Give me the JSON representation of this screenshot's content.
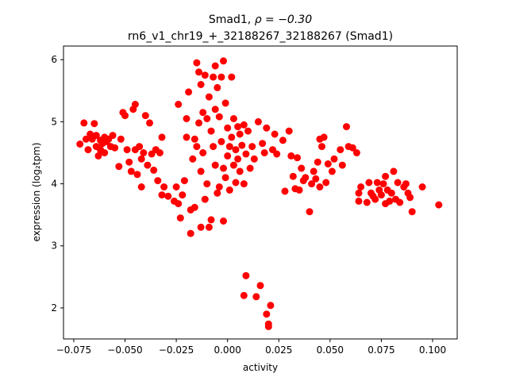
{
  "chart_data": {
    "type": "scatter",
    "title_line1_prefix": "Smad1, ",
    "title_rho": "ρ = −0.30",
    "title_line2": "rn6_v1_chr19_+_32188267_32188267 (Smad1)",
    "xlabel": "activity",
    "ylabel": "expression (log₂tpm)",
    "xlim": [
      -0.08,
      0.112
    ],
    "ylim": [
      1.5,
      6.22
    ],
    "xticks": [
      -0.075,
      -0.05,
      -0.025,
      0.0,
      0.025,
      0.05,
      0.075,
      0.1
    ],
    "xtick_labels": [
      "−0.075",
      "−0.050",
      "−0.025",
      "0.000",
      "0.025",
      "0.050",
      "0.075",
      "0.100"
    ],
    "yticks": [
      2,
      3,
      4,
      5,
      6
    ],
    "ytick_labels": [
      "2",
      "3",
      "4",
      "5",
      "6"
    ],
    "marker_color": "#ff0000",
    "series": [
      {
        "name": "samples",
        "points": [
          [
            -0.072,
            4.64
          ],
          [
            -0.07,
            4.98
          ],
          [
            -0.069,
            4.72
          ],
          [
            -0.068,
            4.55
          ],
          [
            -0.067,
            4.8
          ],
          [
            -0.066,
            4.72
          ],
          [
            -0.065,
            4.97
          ],
          [
            -0.064,
            4.78
          ],
          [
            -0.064,
            4.6
          ],
          [
            -0.063,
            4.45
          ],
          [
            -0.062,
            4.7
          ],
          [
            -0.062,
            4.55
          ],
          [
            -0.061,
            4.65
          ],
          [
            -0.06,
            4.75
          ],
          [
            -0.06,
            4.5
          ],
          [
            -0.059,
            4.68
          ],
          [
            -0.058,
            4.72
          ],
          [
            -0.057,
            4.6
          ],
          [
            -0.056,
            4.78
          ],
          [
            -0.055,
            4.58
          ],
          [
            -0.053,
            4.28
          ],
          [
            -0.052,
            4.72
          ],
          [
            -0.051,
            5.15
          ],
          [
            -0.05,
            5.1
          ],
          [
            -0.049,
            4.55
          ],
          [
            -0.048,
            4.35
          ],
          [
            -0.047,
            4.2
          ],
          [
            -0.046,
            5.2
          ],
          [
            -0.045,
            5.28
          ],
          [
            -0.045,
            4.55
          ],
          [
            -0.044,
            4.15
          ],
          [
            -0.043,
            4.6
          ],
          [
            -0.042,
            4.4
          ],
          [
            -0.042,
            3.95
          ],
          [
            -0.041,
            4.5
          ],
          [
            -0.04,
            5.1
          ],
          [
            -0.039,
            4.3
          ],
          [
            -0.038,
            4.98
          ],
          [
            -0.037,
            4.48
          ],
          [
            -0.036,
            4.22
          ],
          [
            -0.035,
            4.55
          ],
          [
            -0.034,
            4.05
          ],
          [
            -0.033,
            4.5
          ],
          [
            -0.032,
            4.75
          ],
          [
            -0.032,
            3.82
          ],
          [
            -0.031,
            3.95
          ],
          [
            -0.029,
            3.8
          ],
          [
            -0.026,
            3.72
          ],
          [
            -0.025,
            3.95
          ],
          [
            -0.024,
            5.28
          ],
          [
            -0.024,
            3.68
          ],
          [
            -0.023,
            3.45
          ],
          [
            -0.022,
            3.82
          ],
          [
            -0.021,
            4.05
          ],
          [
            -0.02,
            4.75
          ],
          [
            -0.02,
            5.05
          ],
          [
            -0.019,
            5.48
          ],
          [
            -0.018,
            3.58
          ],
          [
            -0.018,
            3.2
          ],
          [
            -0.017,
            4.4
          ],
          [
            -0.016,
            4.72
          ],
          [
            -0.016,
            3.62
          ],
          [
            -0.015,
            5.95
          ],
          [
            -0.015,
            4.6
          ],
          [
            -0.014,
            5.8
          ],
          [
            -0.014,
            4.98
          ],
          [
            -0.013,
            5.6
          ],
          [
            -0.013,
            4.2
          ],
          [
            -0.013,
            3.3
          ],
          [
            -0.012,
            5.15
          ],
          [
            -0.012,
            4.5
          ],
          [
            -0.011,
            5.75
          ],
          [
            -0.011,
            3.75
          ],
          [
            -0.01,
            5.05
          ],
          [
            -0.01,
            4.0
          ],
          [
            -0.009,
            5.4
          ],
          [
            -0.009,
            3.3
          ],
          [
            -0.008,
            4.85
          ],
          [
            -0.008,
            3.42
          ],
          [
            -0.007,
            5.72
          ],
          [
            -0.007,
            4.6
          ],
          [
            -0.006,
            5.9
          ],
          [
            -0.006,
            5.2
          ],
          [
            -0.006,
            4.3
          ],
          [
            -0.005,
            5.55
          ],
          [
            -0.005,
            3.85
          ],
          [
            -0.004,
            5.08
          ],
          [
            -0.004,
            3.95
          ],
          [
            -0.003,
            5.72
          ],
          [
            -0.003,
            4.68
          ],
          [
            -0.002,
            5.98
          ],
          [
            -0.002,
            4.25
          ],
          [
            -0.002,
            3.4
          ],
          [
            -0.001,
            5.3
          ],
          [
            -0.001,
            4.1
          ],
          [
            0.0,
            4.9
          ],
          [
            0.0,
            4.45
          ],
          [
            0.001,
            4.6
          ],
          [
            0.001,
            3.9
          ],
          [
            0.002,
            5.72
          ],
          [
            0.002,
            4.75
          ],
          [
            0.003,
            5.05
          ],
          [
            0.003,
            4.3
          ],
          [
            0.004,
            4.55
          ],
          [
            0.004,
            4.02
          ],
          [
            0.005,
            4.92
          ],
          [
            0.005,
            4.4
          ],
          [
            0.006,
            4.8
          ],
          [
            0.006,
            4.2
          ],
          [
            0.007,
            4.62
          ],
          [
            0.008,
            4.95
          ],
          [
            0.008,
            4.0
          ],
          [
            0.009,
            4.48
          ],
          [
            0.009,
            2.52
          ],
          [
            0.008,
            2.2
          ],
          [
            0.01,
            4.85
          ],
          [
            0.011,
            4.25
          ],
          [
            0.012,
            4.6
          ],
          [
            0.013,
            4.4
          ],
          [
            0.014,
            2.18
          ],
          [
            0.015,
            5.0
          ],
          [
            0.016,
            2.36
          ],
          [
            0.017,
            4.65
          ],
          [
            0.018,
            4.5
          ],
          [
            0.019,
            4.9
          ],
          [
            0.019,
            1.9
          ],
          [
            0.02,
            1.74
          ],
          [
            0.02,
            1.7
          ],
          [
            0.021,
            2.04
          ],
          [
            0.022,
            4.55
          ],
          [
            0.023,
            4.8
          ],
          [
            0.024,
            4.48
          ],
          [
            0.027,
            4.7
          ],
          [
            0.028,
            3.88
          ],
          [
            0.03,
            4.85
          ],
          [
            0.031,
            4.45
          ],
          [
            0.032,
            4.12
          ],
          [
            0.033,
            3.92
          ],
          [
            0.034,
            4.42
          ],
          [
            0.035,
            3.9
          ],
          [
            0.036,
            4.25
          ],
          [
            0.037,
            4.05
          ],
          [
            0.038,
            4.1
          ],
          [
            0.04,
            3.55
          ],
          [
            0.041,
            4.0
          ],
          [
            0.042,
            4.2
          ],
          [
            0.043,
            4.08
          ],
          [
            0.044,
            4.35
          ],
          [
            0.045,
            4.72
          ],
          [
            0.045,
            3.95
          ],
          [
            0.046,
            4.6
          ],
          [
            0.047,
            4.75
          ],
          [
            0.048,
            4.02
          ],
          [
            0.049,
            4.32
          ],
          [
            0.051,
            4.2
          ],
          [
            0.052,
            4.4
          ],
          [
            0.055,
            4.55
          ],
          [
            0.056,
            4.3
          ],
          [
            0.058,
            4.92
          ],
          [
            0.059,
            4.6
          ],
          [
            0.061,
            4.58
          ],
          [
            0.063,
            4.5
          ],
          [
            0.064,
            3.85
          ],
          [
            0.064,
            3.72
          ],
          [
            0.065,
            3.95
          ],
          [
            0.068,
            3.7
          ],
          [
            0.069,
            4.02
          ],
          [
            0.07,
            3.85
          ],
          [
            0.071,
            3.8
          ],
          [
            0.072,
            3.75
          ],
          [
            0.073,
            4.02
          ],
          [
            0.074,
            3.9
          ],
          [
            0.075,
            3.82
          ],
          [
            0.076,
            4.0
          ],
          [
            0.077,
            3.68
          ],
          [
            0.077,
            4.12
          ],
          [
            0.078,
            3.9
          ],
          [
            0.079,
            3.72
          ],
          [
            0.08,
            3.85
          ],
          [
            0.081,
            4.2
          ],
          [
            0.082,
            3.75
          ],
          [
            0.083,
            4.02
          ],
          [
            0.084,
            3.7
          ],
          [
            0.086,
            3.95
          ],
          [
            0.087,
            4.0
          ],
          [
            0.088,
            3.85
          ],
          [
            0.089,
            3.78
          ],
          [
            0.09,
            3.55
          ],
          [
            0.095,
            3.95
          ],
          [
            0.103,
            3.66
          ]
        ]
      }
    ]
  }
}
